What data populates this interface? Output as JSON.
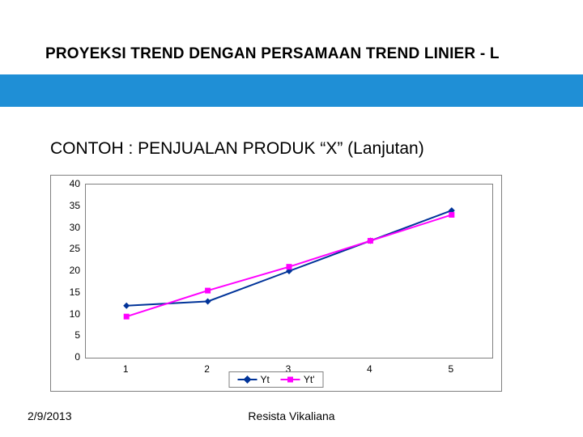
{
  "title": "PROYEKSI TREND DENGAN PERSAMAAN TREND LINIER - L",
  "subtitle": "CONTOH : PENJUALAN PRODUK “X”  (Lanjutan)",
  "footer": {
    "date": "2/9/2013",
    "author": "Resista Vikaliana"
  },
  "chart": {
    "type": "line",
    "background_color": "#ffffff",
    "border_color": "#808080",
    "plot_border_color": "#808080",
    "label_fontsize": 12,
    "label_color": "#000000",
    "x": {
      "categories": [
        "1",
        "2",
        "3",
        "4",
        "5"
      ],
      "min": 0.5,
      "max": 5.5
    },
    "y": {
      "min": 0,
      "max": 40,
      "tick_step": 5,
      "ticks": [
        0,
        5,
        10,
        15,
        20,
        25,
        30,
        35,
        40
      ]
    },
    "series": [
      {
        "name": "Yt",
        "values": [
          12,
          13,
          20,
          27,
          34
        ],
        "color": "#003399",
        "line_width": 2,
        "marker": "diamond",
        "marker_size": 8
      },
      {
        "name": "Yt'",
        "values": [
          9.5,
          15.5,
          21,
          27,
          33
        ],
        "color": "#ff00ff",
        "line_width": 2,
        "marker": "square",
        "marker_size": 7
      }
    ],
    "legend": {
      "position": "bottom-center",
      "border_color": "#808080",
      "background_color": "#ffffff"
    }
  }
}
